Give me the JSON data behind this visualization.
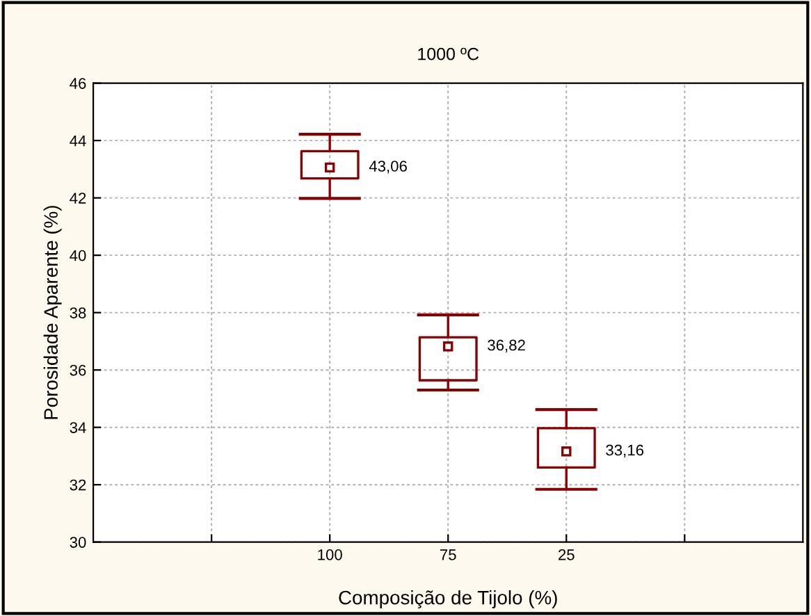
{
  "chart_data": {
    "type": "box",
    "title": "1000 ºC",
    "xlabel": "Composição de Tijolo (%)",
    "ylabel": "Porosidade Aparente (%)",
    "categories": [
      null,
      "100",
      "75",
      "25",
      null
    ],
    "boxes": [
      null,
      {
        "low": 41.98,
        "q1": 42.68,
        "median": 43.06,
        "q3": 43.63,
        "high": 44.22
      },
      {
        "low": 35.3,
        "q1": 35.64,
        "median": 36.82,
        "q3": 37.14,
        "high": 37.92
      },
      {
        "low": 31.84,
        "q1": 32.6,
        "median": 33.16,
        "q3": 33.97,
        "high": 34.62
      },
      null
    ],
    "value_labels": [
      null,
      "43,06",
      "36,82",
      "33,16",
      null
    ],
    "color": "#8b0000",
    "ylim": [
      30,
      46
    ],
    "yticks": [
      30,
      32,
      34,
      36,
      38,
      40,
      42,
      44,
      46
    ],
    "grid": true,
    "marker": "square"
  }
}
